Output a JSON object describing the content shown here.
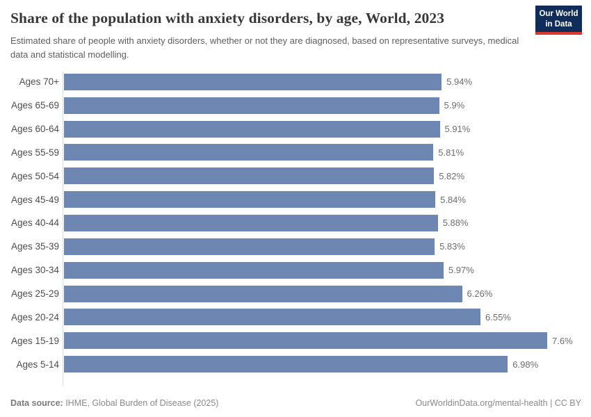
{
  "header": {
    "title": "Share of the population with anxiety disorders, by age, World, 2023",
    "subtitle": "Estimated share of people with anxiety disorders, whether or not they are diagnosed, based on representative surveys, medical data and statistical modelling."
  },
  "logo": {
    "line1": "Our World",
    "line2": "in Data",
    "background_color": "#102d59",
    "accent_color": "#d8382e"
  },
  "chart_data": {
    "type": "bar",
    "orientation": "horizontal",
    "title": "Share of the population with anxiety disorders, by age, World, 2023",
    "categories": [
      "Ages 70+",
      "Ages 65-69",
      "Ages 60-64",
      "Ages 55-59",
      "Ages 50-54",
      "Ages 45-49",
      "Ages 40-44",
      "Ages 35-39",
      "Ages 30-34",
      "Ages 25-29",
      "Ages 20-24",
      "Ages 15-19",
      "Ages 5-14"
    ],
    "values": [
      5.94,
      5.9,
      5.91,
      5.81,
      5.82,
      5.84,
      5.88,
      5.83,
      5.97,
      6.26,
      6.55,
      7.6,
      6.98
    ],
    "value_labels": [
      "5.94%",
      "5.9%",
      "5.91%",
      "5.81%",
      "5.82%",
      "5.84%",
      "5.88%",
      "5.83%",
      "5.97%",
      "6.26%",
      "6.55%",
      "7.6%",
      "6.98%"
    ],
    "xlim": [
      0,
      7.6
    ],
    "grid": false,
    "legend": false,
    "bar_color": "#6d87b2",
    "axis_line_color": "#dcdcdc"
  },
  "footer": {
    "source_label": "Data source:",
    "source_text": " IHME, Global Burden of Disease (2025)",
    "right_text": "OurWorldinData.org/mental-health | CC BY"
  }
}
